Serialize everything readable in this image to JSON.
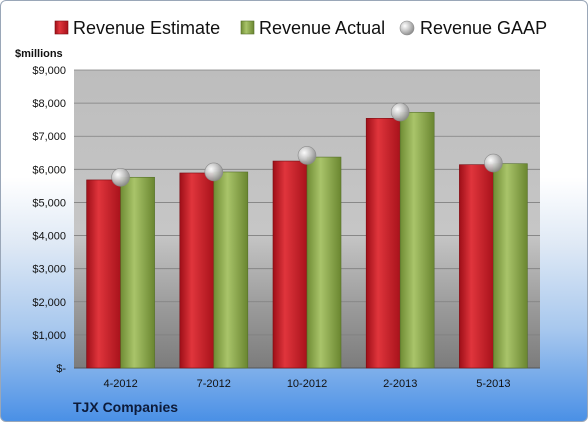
{
  "chart_data": {
    "type": "bar",
    "title": "TJX Companies",
    "ylabel": "$millions",
    "xlabel": "",
    "categories": [
      "4-2012",
      "7-2012",
      "10-2012",
      "2-2013",
      "5-2013"
    ],
    "series": [
      {
        "name": "Revenue Estimate",
        "kind": "bar",
        "color": "#c8202a",
        "values": [
          5680,
          5890,
          6250,
          7540,
          6140
        ]
      },
      {
        "name": "Revenue Actual",
        "kind": "bar",
        "color": "#8caa4e",
        "values": [
          5760,
          5920,
          6370,
          7720,
          6170
        ]
      },
      {
        "name": "Revenue GAAP",
        "kind": "marker",
        "color": "#b9b9b9",
        "values": [
          5760,
          5920,
          6420,
          7730,
          6190
        ]
      }
    ],
    "ylim": [
      0,
      9000
    ],
    "yticks": [
      0,
      1000,
      2000,
      3000,
      4000,
      5000,
      6000,
      7000,
      8000,
      9000
    ],
    "ytick_labels": [
      "$-",
      "$1,000",
      "$2,000",
      "$3,000",
      "$4,000",
      "$5,000",
      "$6,000",
      "$7,000",
      "$8,000",
      "$9,000"
    ],
    "grid": true,
    "legend_position": "top"
  }
}
